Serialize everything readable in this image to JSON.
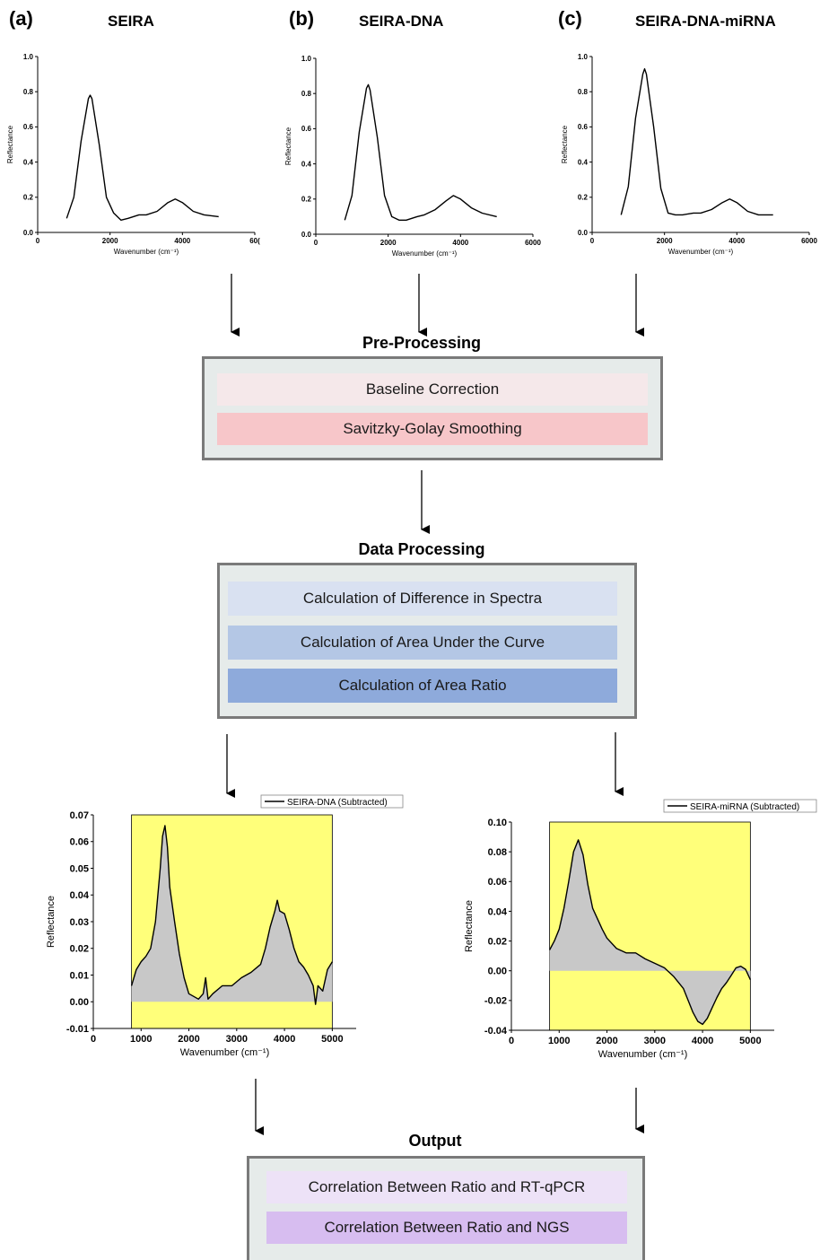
{
  "panels": [
    {
      "letter": "(a)",
      "title": "SEIRA"
    },
    {
      "letter": "(b)",
      "title": "SEIRA-DNA"
    },
    {
      "letter": "(c)",
      "title": "SEIRA-DNA-miRNA"
    }
  ],
  "sections": {
    "preprocessing": {
      "title": "Pre-Processing",
      "steps": [
        "Baseline Correction",
        "Savitzky-Golay Smoothing"
      ]
    },
    "dataprocessing": {
      "title": "Data Processing",
      "steps": [
        "Calculation of Difference in Spectra",
        "Calculation of Area Under the Curve",
        "Calculation of Area Ratio"
      ]
    },
    "output": {
      "title": "Output",
      "steps": [
        "Correlation Between Ratio and RT-qPCR",
        "Correlation Between Ratio and NGS"
      ]
    }
  },
  "colors": {
    "box_bg": "#e6ebea",
    "box_border": "#7a7a7a",
    "pre1": "#f5e8ea",
    "pre2": "#f7c6c9",
    "dp1": "#d9e1f1",
    "dp2": "#b4c7e5",
    "dp3": "#8eaadb",
    "out1": "#ede2f7",
    "out2": "#d7bdf0",
    "plot_area": "#ffff7a",
    "fill": "#c8c8c8"
  },
  "chart_data": [
    {
      "type": "line",
      "panel": "(a)",
      "xlabel": "Wavenumber (cm⁻¹)",
      "ylabel": "Reflectance",
      "xlim": [
        0,
        6000
      ],
      "ylim": [
        0,
        1.0
      ],
      "xticks": [
        "0",
        "2000",
        "4000",
        "60("
      ],
      "yticks": [
        "0.0",
        "0.2",
        "0.4",
        "0.6",
        "0.8",
        "1.0"
      ],
      "x": [
        800,
        1000,
        1200,
        1400,
        1450,
        1500,
        1700,
        1900,
        2100,
        2300,
        2500,
        2800,
        3000,
        3300,
        3600,
        3800,
        4000,
        4300,
        4600,
        5000
      ],
      "y": [
        0.08,
        0.2,
        0.52,
        0.76,
        0.78,
        0.76,
        0.5,
        0.2,
        0.11,
        0.07,
        0.08,
        0.1,
        0.1,
        0.12,
        0.17,
        0.19,
        0.17,
        0.12,
        0.1,
        0.09
      ]
    },
    {
      "type": "line",
      "panel": "(b)",
      "xlabel": "Wavenumber (cm⁻¹)",
      "ylabel": "Reflectance",
      "xlim": [
        0,
        6000
      ],
      "ylim": [
        0,
        1.0
      ],
      "xticks": [
        "0",
        "2000",
        "4000",
        "6000"
      ],
      "yticks": [
        "0.0",
        "0.2",
        "0.4",
        "0.6",
        "0.8",
        "1.0"
      ],
      "x": [
        800,
        1000,
        1200,
        1400,
        1450,
        1500,
        1700,
        1900,
        2100,
        2300,
        2500,
        2800,
        3000,
        3300,
        3600,
        3800,
        4000,
        4300,
        4600,
        5000
      ],
      "y": [
        0.08,
        0.22,
        0.58,
        0.83,
        0.85,
        0.82,
        0.55,
        0.22,
        0.1,
        0.08,
        0.08,
        0.1,
        0.11,
        0.14,
        0.19,
        0.22,
        0.2,
        0.15,
        0.12,
        0.1
      ]
    },
    {
      "type": "line",
      "panel": "(c)",
      "xlabel": "Wavenumber (cm⁻¹)",
      "ylabel": "Reflectance",
      "xlim": [
        0,
        6000
      ],
      "ylim": [
        0,
        1.0
      ],
      "xticks": [
        "0",
        "2000",
        "4000",
        "6000"
      ],
      "yticks": [
        "0.0",
        "0.2",
        "0.4",
        "0.6",
        "0.8",
        "1.0"
      ],
      "x": [
        800,
        1000,
        1200,
        1400,
        1450,
        1500,
        1700,
        1900,
        2100,
        2300,
        2500,
        2800,
        3000,
        3300,
        3600,
        3800,
        4000,
        4300,
        4600,
        5000
      ],
      "y": [
        0.1,
        0.26,
        0.65,
        0.9,
        0.93,
        0.9,
        0.6,
        0.25,
        0.11,
        0.1,
        0.1,
        0.11,
        0.11,
        0.13,
        0.17,
        0.19,
        0.17,
        0.12,
        0.1,
        0.1
      ]
    },
    {
      "type": "area",
      "legend": "SEIRA-DNA (Subtracted)",
      "xlabel": "Wavenumber (cm⁻¹)",
      "ylabel": "Reflectance",
      "xlim": [
        0,
        5500
      ],
      "ylim": [
        -0.01,
        0.07
      ],
      "highlight_x": [
        800,
        5000
      ],
      "xticks": [
        "0",
        "1000",
        "2000",
        "3000",
        "4000",
        "5000"
      ],
      "yticks": [
        "-0.01",
        "0.00",
        "0.01",
        "0.02",
        "0.03",
        "0.04",
        "0.05",
        "0.06",
        "0.07"
      ],
      "x": [
        800,
        900,
        1000,
        1100,
        1200,
        1300,
        1400,
        1450,
        1500,
        1550,
        1600,
        1700,
        1800,
        1900,
        2000,
        2100,
        2200,
        2300,
        2350,
        2400,
        2500,
        2700,
        2900,
        3100,
        3300,
        3500,
        3600,
        3700,
        3800,
        3850,
        3900,
        4000,
        4100,
        4200,
        4300,
        4400,
        4500,
        4600,
        4650,
        4700,
        4800,
        4900,
        5000
      ],
      "y": [
        0.006,
        0.012,
        0.015,
        0.017,
        0.02,
        0.03,
        0.05,
        0.062,
        0.066,
        0.058,
        0.043,
        0.03,
        0.018,
        0.009,
        0.003,
        0.002,
        0.001,
        0.003,
        0.009,
        0.001,
        0.003,
        0.006,
        0.006,
        0.009,
        0.011,
        0.014,
        0.02,
        0.028,
        0.034,
        0.038,
        0.034,
        0.033,
        0.027,
        0.02,
        0.015,
        0.013,
        0.01,
        0.006,
        -0.001,
        0.006,
        0.004,
        0.012,
        0.015
      ]
    },
    {
      "type": "area",
      "legend": "SEIRA-miRNA (Subtracted)",
      "xlabel": "Wavenumber (cm⁻¹)",
      "ylabel": "Reflectance",
      "xlim": [
        0,
        5500
      ],
      "ylim": [
        -0.04,
        0.1
      ],
      "highlight_x": [
        800,
        5000
      ],
      "xticks": [
        "0",
        "1000",
        "2000",
        "3000",
        "4000",
        "5000"
      ],
      "yticks": [
        "-0.04",
        "-0.02",
        "0.00",
        "0.02",
        "0.04",
        "0.06",
        "0.08",
        "0.10"
      ],
      "x": [
        800,
        900,
        1000,
        1100,
        1200,
        1300,
        1400,
        1500,
        1600,
        1700,
        1800,
        1900,
        2000,
        2200,
        2400,
        2600,
        2800,
        3000,
        3200,
        3400,
        3600,
        3700,
        3800,
        3900,
        4000,
        4100,
        4200,
        4300,
        4400,
        4500,
        4600,
        4700,
        4800,
        4900,
        5000
      ],
      "y": [
        0.014,
        0.02,
        0.028,
        0.042,
        0.06,
        0.08,
        0.088,
        0.078,
        0.058,
        0.042,
        0.035,
        0.028,
        0.022,
        0.015,
        0.012,
        0.012,
        0.008,
        0.005,
        0.002,
        -0.004,
        -0.012,
        -0.02,
        -0.028,
        -0.034,
        -0.036,
        -0.032,
        -0.025,
        -0.018,
        -0.012,
        -0.008,
        -0.003,
        0.002,
        0.003,
        0.001,
        -0.006
      ]
    }
  ]
}
